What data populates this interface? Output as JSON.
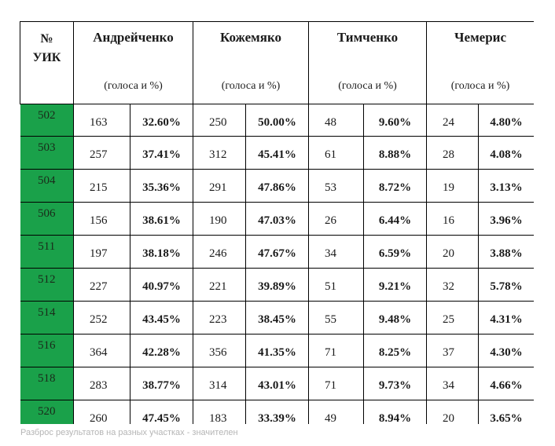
{
  "table": {
    "uik_header_line1": "№",
    "uik_header_line2": "УИК",
    "vote_unit": "(голоса и %)",
    "candidates": [
      "Андрейченко",
      "Кожемяко",
      "Тимченко",
      "Чемерис"
    ],
    "rows": [
      {
        "uik": "502",
        "cells": [
          [
            "163",
            "32.60%"
          ],
          [
            "250",
            "50.00%"
          ],
          [
            "48",
            "9.60%"
          ],
          [
            "24",
            "4.80%"
          ]
        ]
      },
      {
        "uik": "503",
        "cells": [
          [
            "257",
            "37.41%"
          ],
          [
            "312",
            "45.41%"
          ],
          [
            "61",
            "8.88%"
          ],
          [
            "28",
            "4.08%"
          ]
        ]
      },
      {
        "uik": "504",
        "cells": [
          [
            "215",
            "35.36%"
          ],
          [
            "291",
            "47.86%"
          ],
          [
            "53",
            "8.72%"
          ],
          [
            "19",
            "3.13%"
          ]
        ]
      },
      {
        "uik": "506",
        "cells": [
          [
            "156",
            "38.61%"
          ],
          [
            "190",
            "47.03%"
          ],
          [
            "26",
            "6.44%"
          ],
          [
            "16",
            "3.96%"
          ]
        ]
      },
      {
        "uik": "511",
        "cells": [
          [
            "197",
            "38.18%"
          ],
          [
            "246",
            "47.67%"
          ],
          [
            "34",
            "6.59%"
          ],
          [
            "20",
            "3.88%"
          ]
        ]
      },
      {
        "uik": "512",
        "cells": [
          [
            "227",
            "40.97%"
          ],
          [
            "221",
            "39.89%"
          ],
          [
            "51",
            "9.21%"
          ],
          [
            "32",
            "5.78%"
          ]
        ]
      },
      {
        "uik": "514",
        "cells": [
          [
            "252",
            "43.45%"
          ],
          [
            "223",
            "38.45%"
          ],
          [
            "55",
            "9.48%"
          ],
          [
            "25",
            "4.31%"
          ]
        ]
      },
      {
        "uik": "516",
        "cells": [
          [
            "364",
            "42.28%"
          ],
          [
            "356",
            "41.35%"
          ],
          [
            "71",
            "8.25%"
          ],
          [
            "37",
            "4.30%"
          ]
        ]
      },
      {
        "uik": "518",
        "cells": [
          [
            "283",
            "38.77%"
          ],
          [
            "314",
            "43.01%"
          ],
          [
            "71",
            "9.73%"
          ],
          [
            "34",
            "4.66%"
          ]
        ]
      },
      {
        "uik": "520",
        "cells": [
          [
            "260",
            "47.45%"
          ],
          [
            "183",
            "33.39%"
          ],
          [
            "49",
            "8.94%"
          ],
          [
            "20",
            "3.65%"
          ]
        ]
      },
      {
        "uik": "",
        "cells": [
          [
            "",
            ""
          ],
          [
            "",
            ""
          ],
          [
            "",
            ""
          ],
          [
            "",
            ""
          ]
        ]
      }
    ]
  },
  "caption": "Разброс результатов на разных участках - значителен",
  "colors": {
    "uik_column": "#1aa14a",
    "border": "#000000",
    "caption_text": "#b5b5b5"
  }
}
